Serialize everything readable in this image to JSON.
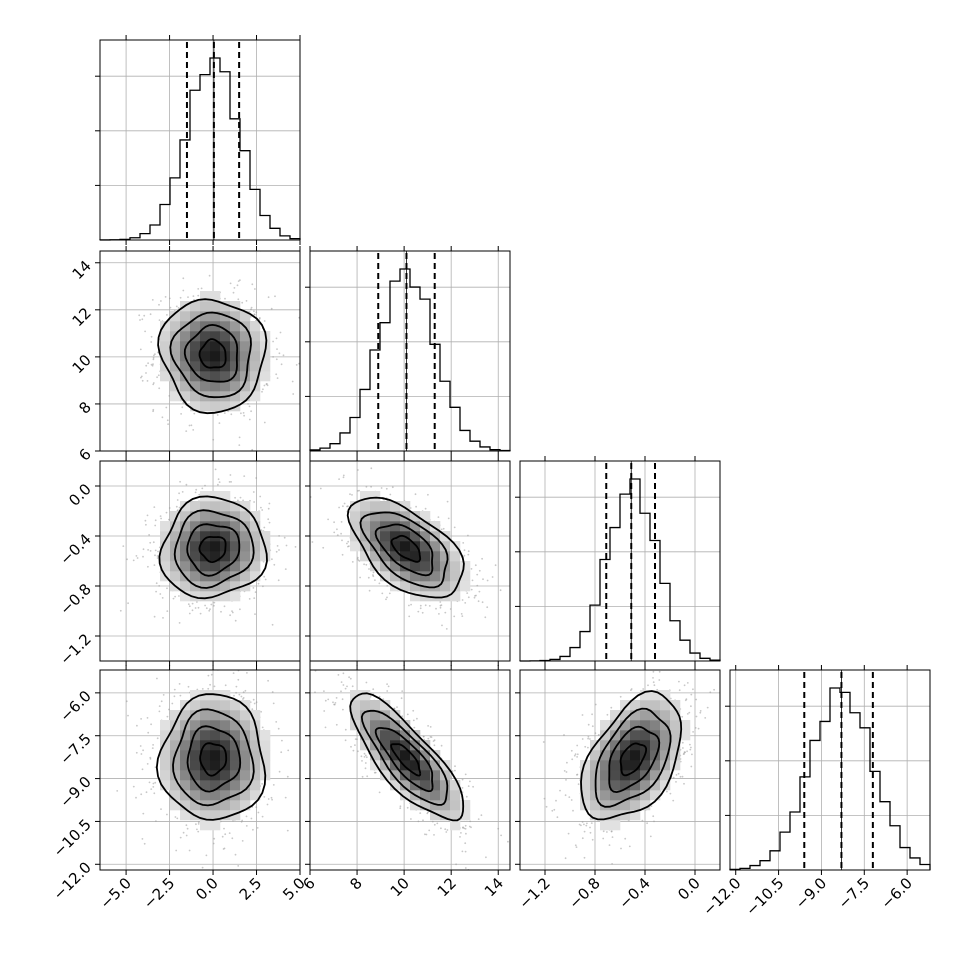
{
  "chart_data": {
    "type": "scatter",
    "title": "",
    "figure": "corner plot of four parameters (histograms on diagonal, 2D density contours below)",
    "parameters": [
      {
        "name": "",
        "range": [
          -6.5,
          5.0
        ],
        "ticks": [
          -5.0,
          -2.5,
          0.0,
          2.5,
          5.0
        ],
        "tick_labels": [
          "−5.0",
          "−2.5",
          "0.0",
          "2.5",
          "5.0"
        ],
        "mean": 0.0,
        "sd": 1.5,
        "quantiles": [
          -1.5,
          0.05,
          1.5
        ],
        "histogram_hint": "unimodal"
      },
      {
        "name": "",
        "range": [
          6.0,
          14.5
        ],
        "ticks": [
          6,
          8,
          10,
          12,
          14
        ],
        "tick_labels": [
          "6",
          "8",
          "10",
          "12",
          "14"
        ],
        "mean": 10.1,
        "sd": 1.2,
        "quantiles": [
          8.9,
          10.1,
          11.3
        ]
      },
      {
        "name": "",
        "range": [
          -1.4,
          0.2
        ],
        "ticks": [
          -1.2,
          -0.8,
          -0.4,
          0.0
        ],
        "tick_labels": [
          "−1.2",
          "−0.8",
          "−0.4",
          "0.0"
        ],
        "mean": -0.5,
        "sd": 0.2,
        "quantiles": [
          -0.71,
          -0.51,
          -0.32
        ]
      },
      {
        "name": "",
        "range": [
          -12.2,
          -5.2
        ],
        "ticks": [
          -12.0,
          -10.5,
          -9.0,
          -7.5,
          -6.0
        ],
        "tick_labels": [
          "−12.0",
          "−10.5",
          "−9.0",
          "−7.5",
          "−6.0"
        ],
        "mean": -8.3,
        "sd": 1.1,
        "quantiles": [
          -9.6,
          -8.3,
          -7.2
        ]
      }
    ],
    "correlations": {
      "1-0": -0.05,
      "2-0": 0.05,
      "2-1": -0.55,
      "3-0": 0.0,
      "3-1": -0.8,
      "3-2": 0.45
    },
    "truth_lines": true,
    "grid": true,
    "legend": "none"
  }
}
